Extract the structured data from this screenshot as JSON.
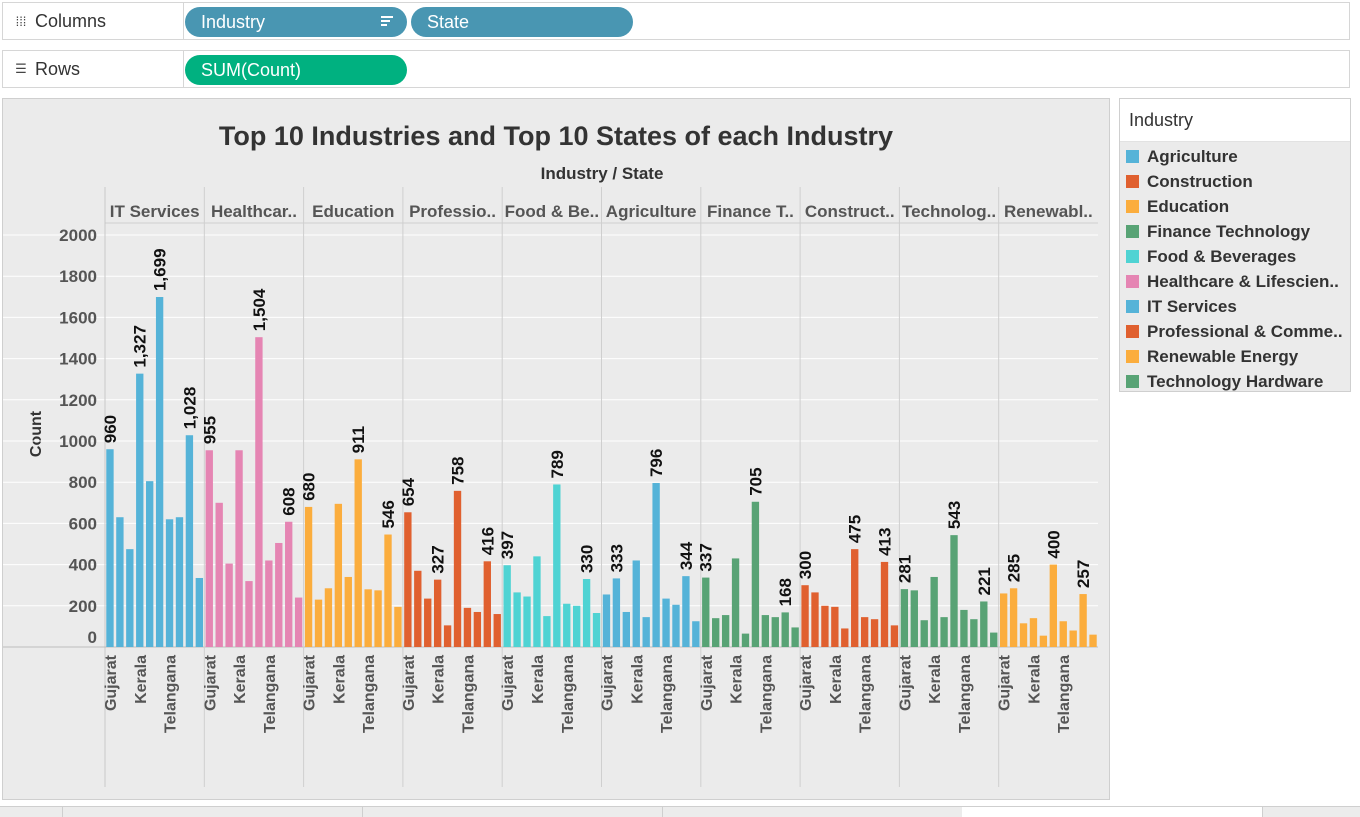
{
  "shelves": {
    "columns": {
      "label": "Columns",
      "icon": "columns-icon",
      "pills": [
        "Industry",
        "State"
      ]
    },
    "rows": {
      "label": "Rows",
      "icon": "rows-icon",
      "pills": [
        "SUM(Count)"
      ]
    }
  },
  "colors": {
    "dimension_pill": "#4996b2",
    "measure_pill": "#00b180",
    "view_background": "#ebebeb",
    "gridline": "#ffffff"
  },
  "legend": {
    "title": "Industry",
    "items": [
      {
        "label": "Agriculture",
        "color": "#55b3d8"
      },
      {
        "label": "Construction",
        "color": "#e0602f"
      },
      {
        "label": "Education",
        "color": "#fbad3d"
      },
      {
        "label": "Finance Technology",
        "color": "#58a375"
      },
      {
        "label": "Food & Beverages",
        "color": "#4fd3d3"
      },
      {
        "label": "Healthcare & Lifescien..",
        "color": "#e585b3"
      },
      {
        "label": "IT Services",
        "color": "#55b3d8"
      },
      {
        "label": "Professional & Comme..",
        "color": "#e0602f"
      },
      {
        "label": "Renewable Energy",
        "color": "#fbad3d"
      },
      {
        "label": "Technology Hardware",
        "color": "#58a375"
      }
    ]
  },
  "chart_data": {
    "type": "bar",
    "title": "Top 10 Industries and Top 10 States of each Industry",
    "header": "Industry / State",
    "ylabel": "Count",
    "ylim": [
      0,
      2000
    ],
    "yticks": [
      0,
      200,
      400,
      600,
      800,
      1000,
      1200,
      1400,
      1600,
      1800,
      2000
    ],
    "grid": true,
    "legend_position": "right",
    "panes": [
      {
        "label": "IT Services",
        "color": "#55b3d8",
        "values": [
          960,
          630,
          475,
          1327,
          805,
          1699,
          620,
          630,
          1028,
          335
        ],
        "labels": [
          "960",
          "",
          "",
          "1,327",
          "",
          "1,699",
          "",
          "",
          "1,028",
          ""
        ],
        "states": [
          "Gujarat",
          "",
          "",
          "Kerala",
          "",
          "",
          "Telangana",
          "",
          "",
          ""
        ]
      },
      {
        "label": "Healthcar..",
        "color": "#e585b3",
        "values": [
          955,
          700,
          405,
          955,
          320,
          1504,
          420,
          505,
          608,
          240
        ],
        "labels": [
          "955",
          "",
          "",
          "",
          "",
          "1,504",
          "",
          "",
          "608",
          ""
        ],
        "states": [
          "Gujarat",
          "",
          "",
          "Kerala",
          "",
          "",
          "Telangana",
          "",
          "",
          ""
        ]
      },
      {
        "label": "Education",
        "color": "#fbad3d",
        "values": [
          680,
          230,
          285,
          695,
          340,
          911,
          280,
          275,
          546,
          195
        ],
        "labels": [
          "680",
          "",
          "",
          "",
          "",
          "911",
          "",
          "",
          "546",
          ""
        ],
        "states": [
          "Gujarat",
          "",
          "",
          "Kerala",
          "",
          "",
          "Telangana",
          "",
          "",
          ""
        ]
      },
      {
        "label": "Professio..",
        "color": "#e0602f",
        "values": [
          654,
          370,
          235,
          327,
          105,
          758,
          190,
          170,
          416,
          160
        ],
        "labels": [
          "654",
          "",
          "",
          "327",
          "",
          "758",
          "",
          "",
          "416",
          ""
        ],
        "states": [
          "Gujarat",
          "",
          "",
          "Kerala",
          "",
          "",
          "Telangana",
          "",
          "",
          ""
        ]
      },
      {
        "label": "Food & Be..",
        "color": "#4fd3d3",
        "values": [
          397,
          265,
          245,
          440,
          150,
          789,
          210,
          200,
          330,
          165
        ],
        "labels": [
          "397",
          "",
          "",
          "",
          "",
          "789",
          "",
          "",
          "330",
          ""
        ],
        "states": [
          "Gujarat",
          "",
          "",
          "Kerala",
          "",
          "",
          "Telangana",
          "",
          "",
          ""
        ]
      },
      {
        "label": "Agriculture",
        "color": "#55b3d8",
        "values": [
          255,
          333,
          170,
          420,
          145,
          796,
          235,
          205,
          344,
          125
        ],
        "labels": [
          "",
          "333",
          "",
          "",
          "",
          "796",
          "",
          "",
          "344",
          ""
        ],
        "states": [
          "Gujarat",
          "",
          "",
          "Kerala",
          "",
          "",
          "Telangana",
          "",
          "",
          ""
        ]
      },
      {
        "label": "Finance T..",
        "color": "#58a375",
        "values": [
          337,
          140,
          155,
          430,
          65,
          705,
          155,
          145,
          168,
          95
        ],
        "labels": [
          "337",
          "",
          "",
          "",
          "",
          "705",
          "",
          "",
          "168",
          ""
        ],
        "states": [
          "Gujarat",
          "",
          "",
          "Kerala",
          "",
          "",
          "Telangana",
          "",
          "",
          ""
        ]
      },
      {
        "label": "Construct..",
        "color": "#e0602f",
        "values": [
          300,
          265,
          200,
          195,
          90,
          475,
          145,
          135,
          413,
          105
        ],
        "labels": [
          "300",
          "",
          "",
          "",
          "",
          "475",
          "",
          "",
          "413",
          ""
        ],
        "states": [
          "Gujarat",
          "",
          "",
          "Kerala",
          "",
          "",
          "Telangana",
          "",
          "",
          ""
        ]
      },
      {
        "label": "Technolog..",
        "color": "#58a375",
        "values": [
          281,
          275,
          130,
          340,
          145,
          543,
          180,
          135,
          221,
          70
        ],
        "labels": [
          "281",
          "",
          "",
          "",
          "",
          "543",
          "",
          "",
          "221",
          ""
        ],
        "states": [
          "Gujarat",
          "",
          "",
          "Kerala",
          "",
          "",
          "Telangana",
          "",
          "",
          ""
        ]
      },
      {
        "label": "Renewabl..",
        "color": "#fbad3d",
        "values": [
          260,
          285,
          115,
          140,
          55,
          400,
          125,
          80,
          257,
          60
        ],
        "labels": [
          "",
          "285",
          "",
          "",
          "",
          "400",
          "",
          "",
          "257",
          ""
        ],
        "states": [
          "Gujarat",
          "",
          "",
          "Kerala",
          "",
          "",
          "Telangana",
          "",
          "",
          ""
        ]
      }
    ]
  }
}
